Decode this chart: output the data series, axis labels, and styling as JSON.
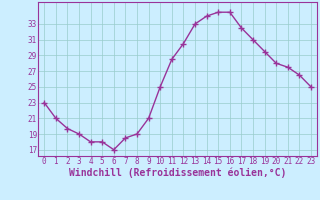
{
  "x": [
    0,
    1,
    2,
    3,
    4,
    5,
    6,
    7,
    8,
    9,
    10,
    11,
    12,
    13,
    14,
    15,
    16,
    17,
    18,
    19,
    20,
    21,
    22,
    23
  ],
  "y": [
    23,
    21,
    19.7,
    19,
    18,
    18,
    17,
    18.5,
    19,
    21,
    25,
    28.5,
    30.5,
    33,
    34,
    34.5,
    34.5,
    32.5,
    31,
    29.5,
    28,
    27.5,
    26.5,
    25
  ],
  "line_color": "#993399",
  "marker": "+",
  "marker_size": 4,
  "bg_color": "#cceeff",
  "grid_color": "#99cccc",
  "xlabel": "Windchill (Refroidissement éolien,°C)",
  "xlabel_fontsize": 7,
  "ytick_labels": [
    "17",
    "19",
    "21",
    "23",
    "25",
    "27",
    "29",
    "31",
    "33"
  ],
  "ytick_values": [
    17,
    19,
    21,
    23,
    25,
    27,
    29,
    31,
    33
  ],
  "xtick_values": [
    0,
    1,
    2,
    3,
    4,
    5,
    6,
    7,
    8,
    9,
    10,
    11,
    12,
    13,
    14,
    15,
    16,
    17,
    18,
    19,
    20,
    21,
    22,
    23
  ],
  "ylim": [
    16.2,
    35.8
  ],
  "xlim": [
    -0.5,
    23.5
  ],
  "tick_color": "#993399",
  "tick_fontsize": 5.5,
  "line_width": 1.0,
  "spine_color": "#993399"
}
